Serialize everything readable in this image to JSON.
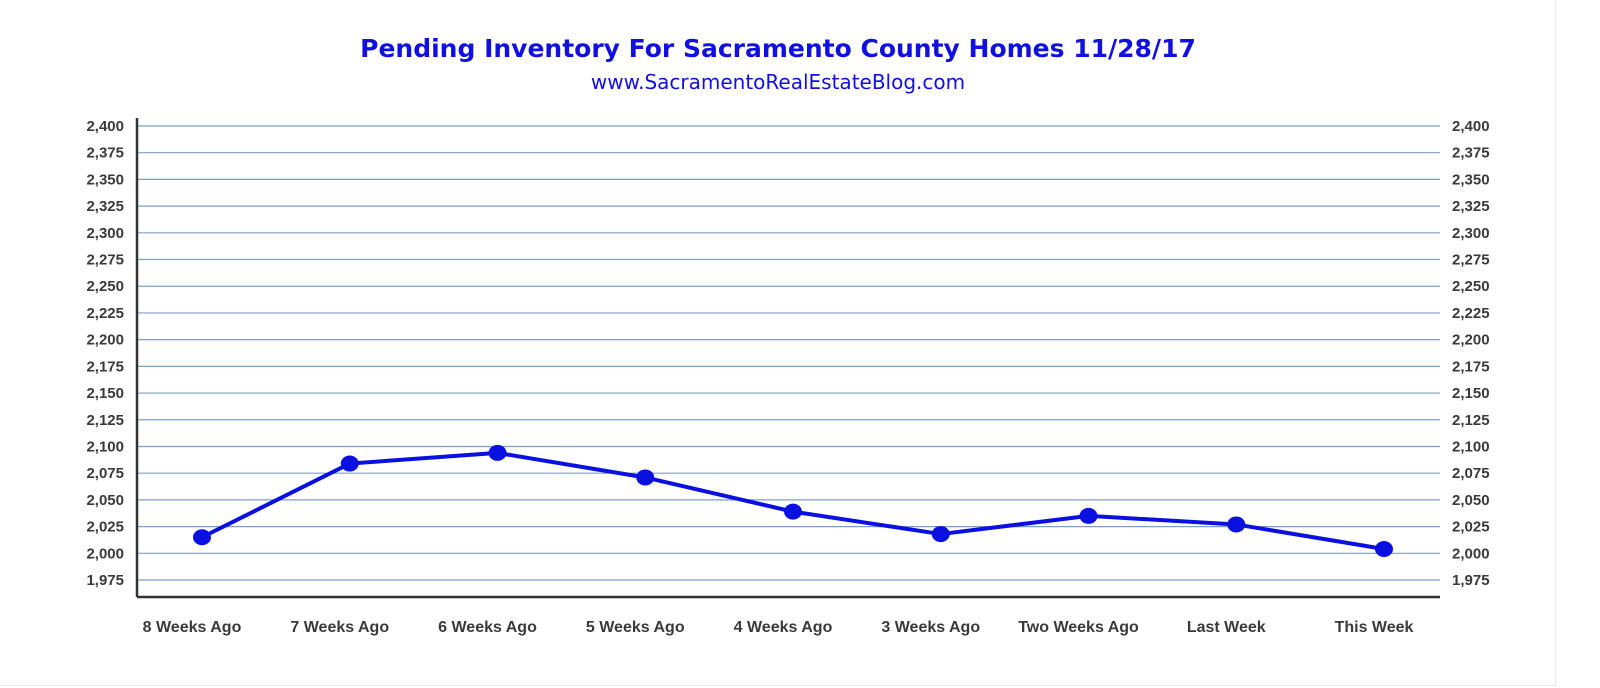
{
  "chart_data": {
    "type": "line",
    "title": "Pending Inventory For Sacramento County Homes 11/28/17",
    "subtitle": "www.SacramentoRealEstateBlog.com",
    "xlabel": "",
    "ylabel": "",
    "categories": [
      "8 Weeks Ago",
      "7 Weeks Ago",
      "6 Weeks Ago",
      "5 Weeks Ago",
      "4 Weeks Ago",
      "3 Weeks Ago",
      "Two Weeks Ago",
      "Last Week",
      "This Week"
    ],
    "series": [
      {
        "values": [
          2015,
          2084,
          2094,
          2071,
          2039,
          2018,
          2035,
          2027,
          2004
        ]
      }
    ],
    "ylim": [
      1975,
      2400
    ],
    "y_ticks": [
      "2,400",
      "2,375",
      "2,350",
      "2,325",
      "2,300",
      "2,275",
      "2,250",
      "2,225",
      "2,200",
      "2,175",
      "2,150",
      "2,125",
      "2,100",
      "2,075",
      "2,050",
      "2,025",
      "2,000",
      "1,975"
    ],
    "y_tick_values": [
      2400,
      2375,
      2350,
      2325,
      2300,
      2275,
      2250,
      2225,
      2200,
      2175,
      2150,
      2125,
      2100,
      2075,
      2050,
      2025,
      2000,
      1975
    ],
    "grid": true,
    "secondary_y_axis": true,
    "legend": "none",
    "colors": {
      "line": "#0a10e0",
      "grid": "#7f9fc0",
      "axis": "#333333",
      "title": "#1010e0"
    }
  }
}
